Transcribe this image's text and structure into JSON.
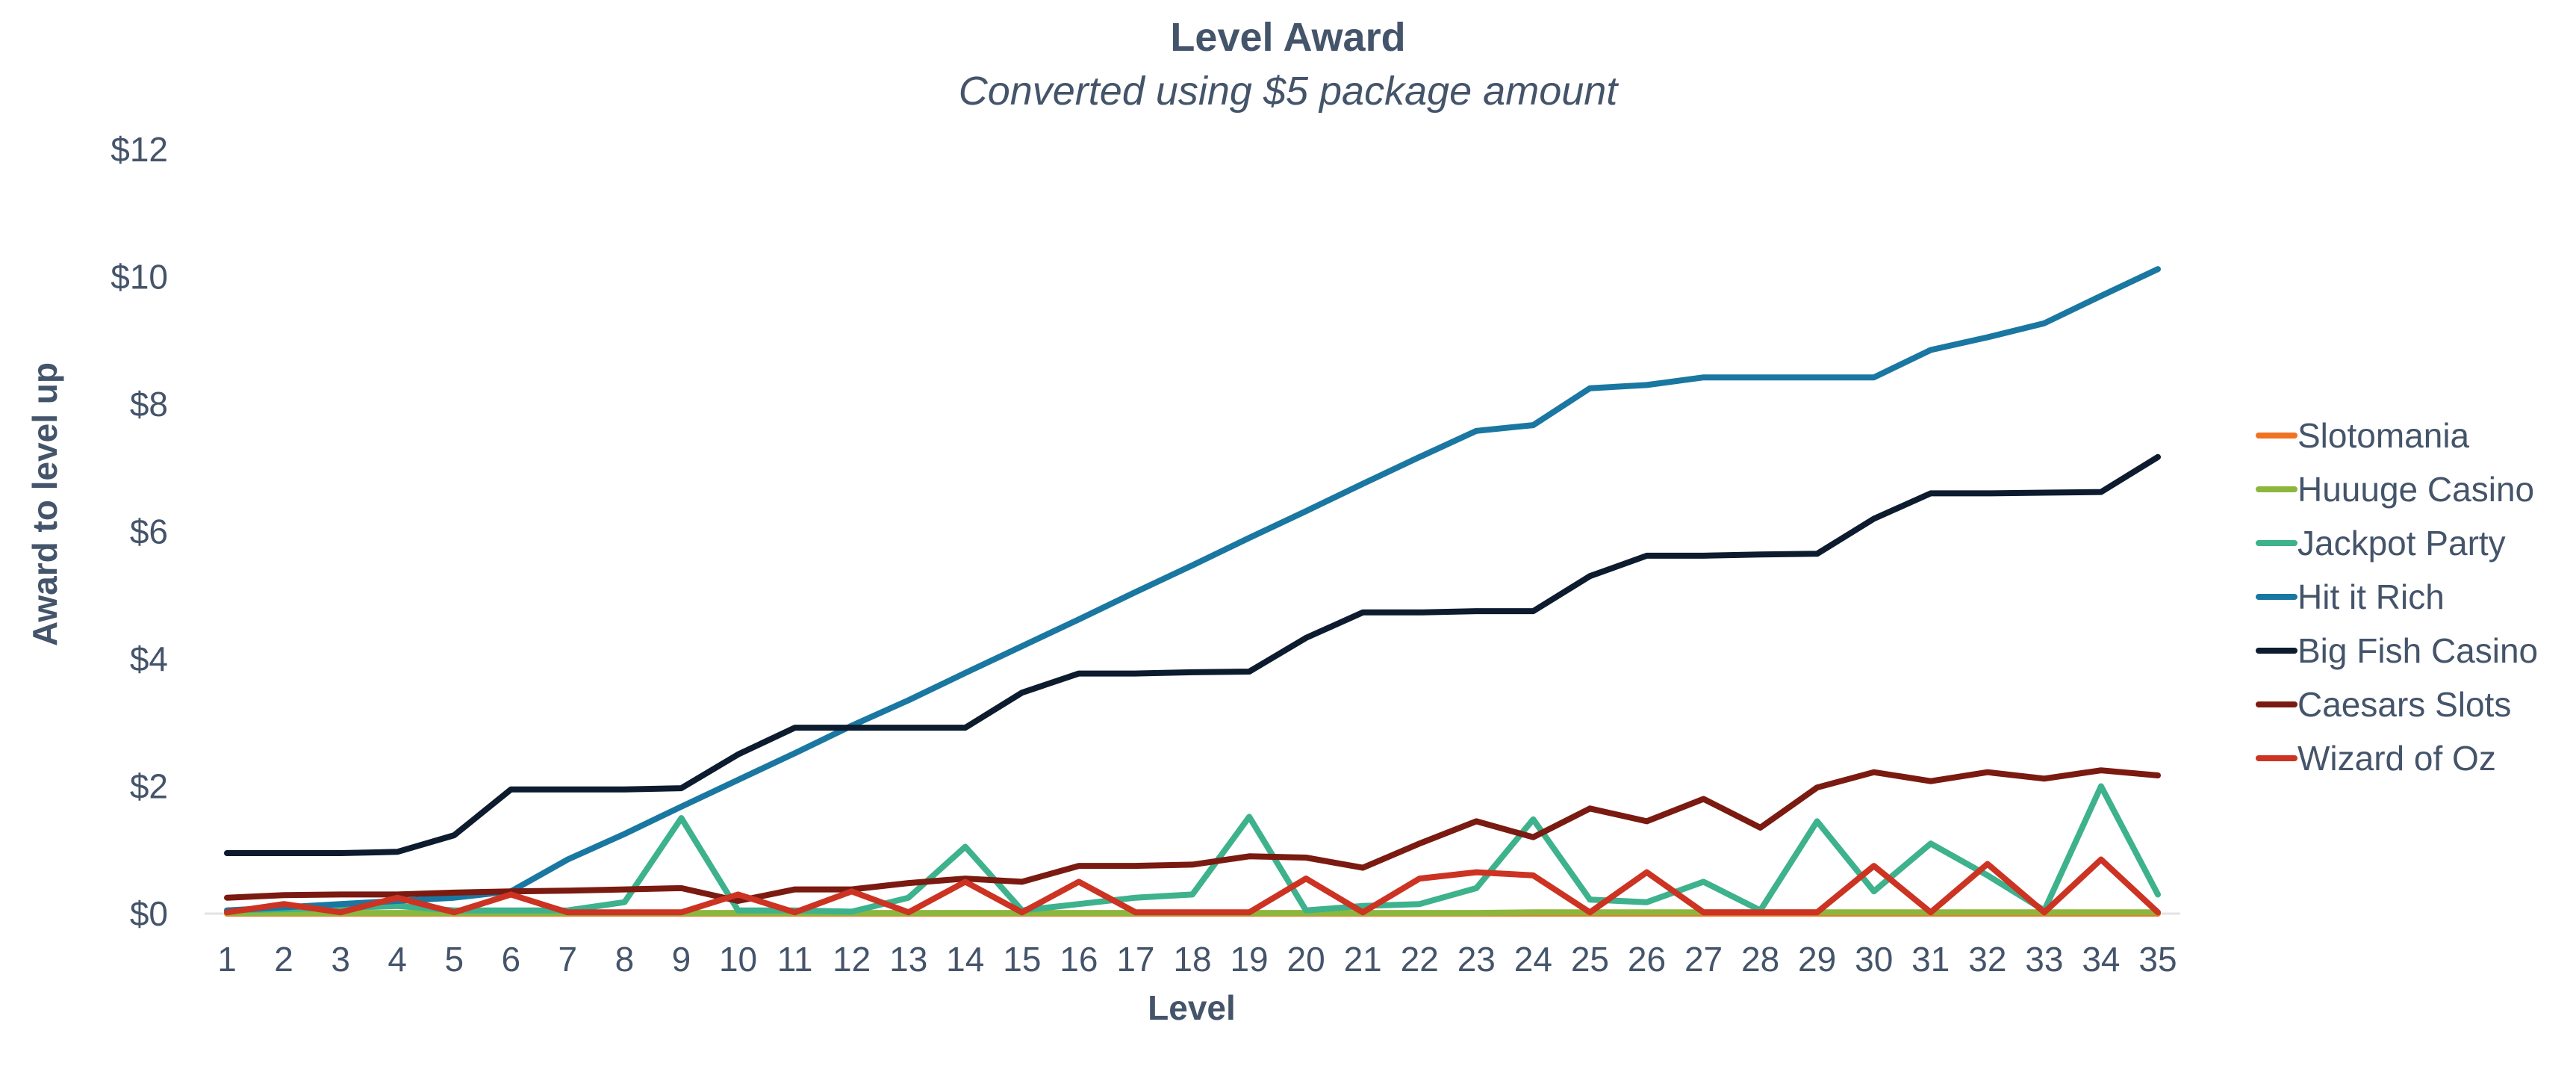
{
  "chart_data": {
    "type": "line",
    "title": "Level Award",
    "subtitle": "Converted using $5 package amount",
    "xlabel": "Level",
    "ylabel": "Award to level up",
    "ylim": [
      0,
      12
    ],
    "y_ticks": [
      0,
      2,
      4,
      6,
      8,
      10,
      12
    ],
    "y_tick_labels": [
      "$0",
      "$2",
      "$4",
      "$6",
      "$8",
      "$10",
      "$12"
    ],
    "x": [
      1,
      2,
      3,
      4,
      5,
      6,
      7,
      8,
      9,
      10,
      11,
      12,
      13,
      14,
      15,
      16,
      17,
      18,
      19,
      20,
      21,
      22,
      23,
      24,
      25,
      26,
      27,
      28,
      29,
      30,
      31,
      32,
      33,
      34,
      35
    ],
    "x_tick_labels": [
      "1",
      "2",
      "3",
      "4",
      "5",
      "6",
      "7",
      "8",
      "9",
      "10",
      "11",
      "12",
      "13",
      "14",
      "15",
      "16",
      "17",
      "18",
      "19",
      "20",
      "21",
      "22",
      "23",
      "24",
      "25",
      "26",
      "27",
      "28",
      "29",
      "30",
      "31",
      "32",
      "33",
      "34",
      "35"
    ],
    "grid": false,
    "legend_position": "right",
    "series": [
      {
        "name": "Slotomania",
        "color": "#f07322",
        "values": [
          0,
          0,
          0,
          0,
          0,
          0,
          0,
          0,
          0,
          0,
          0,
          0,
          0,
          0,
          0,
          0,
          0,
          0,
          0,
          0,
          0,
          0,
          0,
          0,
          0,
          0,
          0,
          0,
          0,
          0,
          0,
          0,
          0,
          0,
          0
        ]
      },
      {
        "name": "Huuuge Casino",
        "color": "#8db63c",
        "values": [
          0.01,
          0.01,
          0.01,
          0.01,
          0.01,
          0.01,
          0.01,
          0.01,
          0.01,
          0.01,
          0.01,
          0.01,
          0.01,
          0.01,
          0.01,
          0.01,
          0.01,
          0.01,
          0.01,
          0.01,
          0.01,
          0.01,
          0.01,
          0.02,
          0.02,
          0.02,
          0.02,
          0.02,
          0.02,
          0.02,
          0.02,
          0.02,
          0.02,
          0.02,
          0.02
        ]
      },
      {
        "name": "Jackpot Party",
        "color": "#3db28c",
        "values": [
          0.05,
          0.07,
          0.09,
          0.12,
          0.05,
          0.05,
          0.05,
          0.18,
          1.5,
          0.05,
          0.05,
          0.03,
          0.25,
          1.05,
          0.05,
          0.15,
          0.25,
          0.3,
          1.52,
          0.05,
          0.12,
          0.15,
          0.4,
          1.48,
          0.22,
          0.18,
          0.5,
          0.05,
          1.45,
          0.35,
          1.1,
          0.6,
          0.05,
          2.0,
          0.3
        ]
      },
      {
        "name": "Hit it Rich",
        "color": "#1a77a1",
        "values": [
          0.05,
          0.1,
          0.15,
          0.2,
          0.25,
          0.35,
          0.85,
          1.25,
          1.68,
          2.1,
          2.52,
          2.95,
          3.35,
          3.78,
          4.2,
          4.62,
          5.05,
          5.47,
          5.9,
          6.32,
          6.75,
          7.17,
          7.58,
          7.67,
          8.25,
          8.3,
          8.42,
          8.42,
          8.42,
          8.42,
          8.85,
          9.05,
          9.27,
          9.7,
          10.12
        ]
      },
      {
        "name": "Big Fish Casino",
        "color": "#0d1b2e",
        "values": [
          0.95,
          0.95,
          0.95,
          0.97,
          1.23,
          1.95,
          1.95,
          1.95,
          1.97,
          2.5,
          2.92,
          2.92,
          2.92,
          2.92,
          3.47,
          3.77,
          3.77,
          3.79,
          3.8,
          4.33,
          4.73,
          4.73,
          4.75,
          4.75,
          5.3,
          5.62,
          5.62,
          5.64,
          5.65,
          6.2,
          6.6,
          6.6,
          6.61,
          6.62,
          7.17
        ]
      },
      {
        "name": "Caesars Slots",
        "color": "#7a1a10",
        "values": [
          0.25,
          0.29,
          0.3,
          0.3,
          0.33,
          0.35,
          0.36,
          0.38,
          0.4,
          0.2,
          0.38,
          0.38,
          0.48,
          0.55,
          0.5,
          0.75,
          0.75,
          0.77,
          0.9,
          0.88,
          0.72,
          1.1,
          1.45,
          1.2,
          1.65,
          1.45,
          1.8,
          1.35,
          1.98,
          2.22,
          2.08,
          2.22,
          2.12,
          2.25,
          2.17
        ]
      },
      {
        "name": "Wizard of Oz",
        "color": "#cc3322",
        "values": [
          0.02,
          0.15,
          0.02,
          0.25,
          0.02,
          0.3,
          0.02,
          0.02,
          0.02,
          0.3,
          0.02,
          0.35,
          0.02,
          0.5,
          0.02,
          0.5,
          0.02,
          0.02,
          0.02,
          0.55,
          0.02,
          0.55,
          0.65,
          0.6,
          0.02,
          0.65,
          0.02,
          0.02,
          0.02,
          0.75,
          0.02,
          0.78,
          0.02,
          0.85,
          0.02
        ]
      }
    ]
  }
}
